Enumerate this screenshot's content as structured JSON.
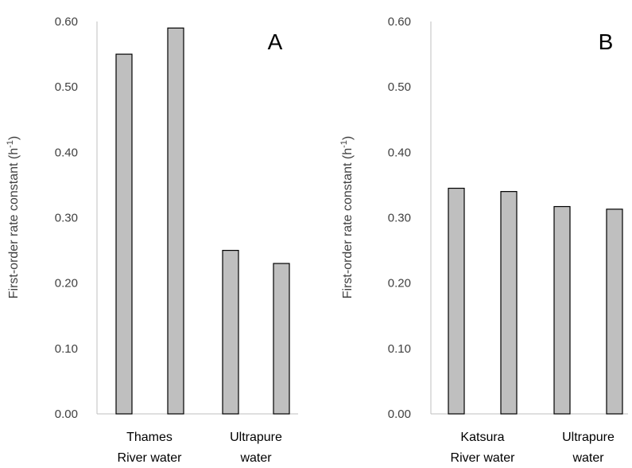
{
  "chart_data": [
    {
      "type": "bar",
      "panel_label": "A",
      "ylabel": "First-order rate constant (h",
      "ylabel_sup": "-1",
      "ylabel_close": ")",
      "ylim": [
        0,
        0.6
      ],
      "yticks": [
        "0.00",
        "0.10",
        "0.20",
        "0.30",
        "0.40",
        "0.50",
        "0.60"
      ],
      "groups": [
        {
          "label_lines": [
            "Thames",
            "River water"
          ]
        },
        {
          "label_lines": [
            "Ultrapure",
            "water"
          ]
        }
      ],
      "values": [
        0.55,
        0.59,
        0.25,
        0.23
      ],
      "group_of_bar": [
        0,
        0,
        1,
        1
      ],
      "bar_color": "#bfbfbf",
      "grid": false
    },
    {
      "type": "bar",
      "panel_label": "B",
      "ylabel": "First-order rate constant (h",
      "ylabel_sup": "-1",
      "ylabel_close": ")",
      "ylim": [
        0,
        0.6
      ],
      "yticks": [
        "0.00",
        "0.10",
        "0.20",
        "0.30",
        "0.40",
        "0.50",
        "0.60"
      ],
      "groups": [
        {
          "label_lines": [
            "Katsura",
            "River water"
          ]
        },
        {
          "label_lines": [
            "Ultrapure",
            "water"
          ]
        }
      ],
      "values": [
        0.345,
        0.34,
        0.317,
        0.313
      ],
      "group_of_bar": [
        0,
        0,
        1,
        1
      ],
      "bar_color": "#bfbfbf",
      "grid": false
    }
  ]
}
